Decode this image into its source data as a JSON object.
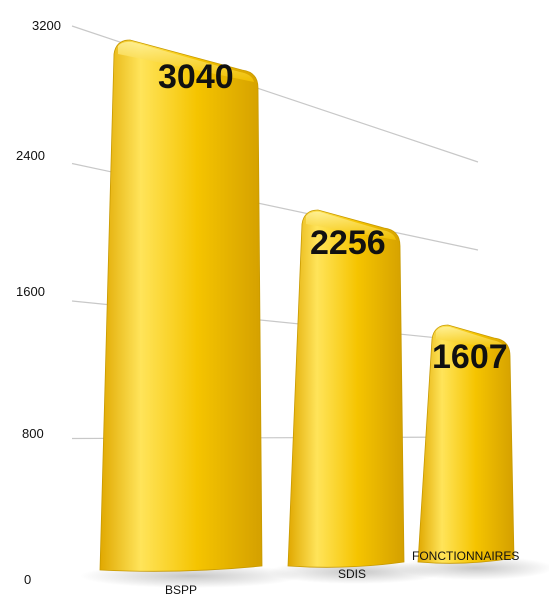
{
  "chart_data": {
    "type": "bar",
    "categories": [
      "BSPP",
      "SDIS",
      "FONCTIONNAIRES"
    ],
    "values": [
      3040,
      2256,
      1607
    ],
    "value_labels": [
      "3040",
      "2256",
      "1607"
    ],
    "yticks": [
      "0",
      "800",
      "1600",
      "2400",
      "3200"
    ],
    "ylim": [
      0,
      3200
    ],
    "grid": true,
    "bar_color": "#F5C400",
    "bar_highlight": "#FFE45A",
    "bar_shadow": "#C89A00",
    "grid_color": "#C8C8C8"
  }
}
